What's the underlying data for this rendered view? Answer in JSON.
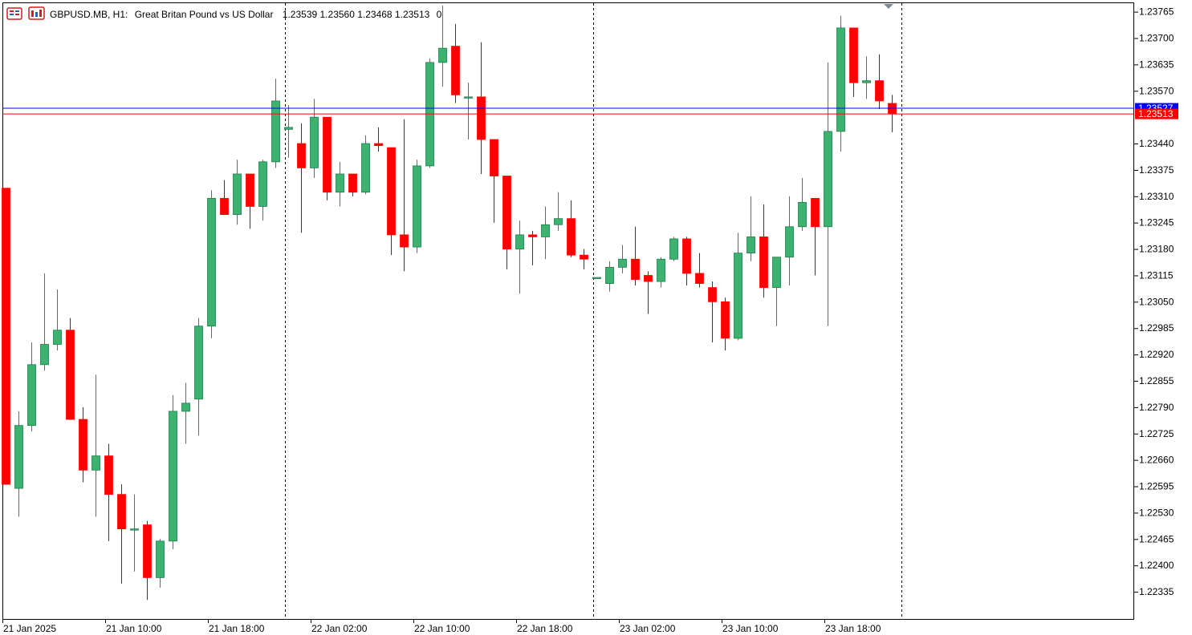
{
  "header": {
    "symbol": "GBPUSD.MB, H1:",
    "description": "Great Britan Pound vs US Dollar",
    "ohlc": "1.23539 1.23560 1.23468 1.23513",
    "volume": "0"
  },
  "colors": {
    "bull": "#3CB371",
    "bull_wick": "#2E8B57",
    "bear": "#FF0000",
    "bear_wick": "#C00000",
    "ask_line": "#0000FF",
    "bid_line": "#FF0000",
    "grid": "#000000"
  },
  "chart_data": {
    "type": "candlestick",
    "timeframe": "H1",
    "y_axis_labels": [
      "1.23765",
      "1.23700",
      "1.23635",
      "1.23570",
      "1.23440",
      "1.23375",
      "1.23310",
      "1.23245",
      "1.23180",
      "1.23115",
      "1.23050",
      "1.22985",
      "1.22920",
      "1.22855",
      "1.22790",
      "1.22725",
      "1.22660",
      "1.22595",
      "1.22530",
      "1.22465",
      "1.22400",
      "1.22335"
    ],
    "ylim": [
      1.22268,
      1.23786
    ],
    "x_axis_labels": [
      "21 Jan 2025",
      "21 Jan 10:00",
      "21 Jan 18:00",
      "22 Jan 02:00",
      "22 Jan 10:00",
      "22 Jan 18:00",
      "23 Jan 02:00",
      "23 Jan 10:00",
      "23 Jan 18:00"
    ],
    "ask_price": "1.23527",
    "bid_price": "1.23513",
    "candles": [
      {
        "o": 1.2333,
        "h": 1.2333,
        "l": 1.226,
        "c": 1.226
      },
      {
        "o": 1.2259,
        "h": 1.2278,
        "l": 1.2252,
        "c": 1.22745
      },
      {
        "o": 1.22745,
        "h": 1.2295,
        "l": 1.2273,
        "c": 1.22895
      },
      {
        "o": 1.22895,
        "h": 1.2312,
        "l": 1.2288,
        "c": 1.22945
      },
      {
        "o": 1.22945,
        "h": 1.2308,
        "l": 1.2293,
        "c": 1.2298
      },
      {
        "o": 1.2298,
        "h": 1.2301,
        "l": 1.2276,
        "c": 1.2276
      },
      {
        "o": 1.2276,
        "h": 1.2279,
        "l": 1.22605,
        "c": 1.22635
      },
      {
        "o": 1.22635,
        "h": 1.2287,
        "l": 1.2252,
        "c": 1.2267
      },
      {
        "o": 1.2267,
        "h": 1.227,
        "l": 1.2246,
        "c": 1.22575
      },
      {
        "o": 1.22575,
        "h": 1.226,
        "l": 1.22355,
        "c": 1.2249
      },
      {
        "o": 1.2249,
        "h": 1.22575,
        "l": 1.22385,
        "c": 1.2249
      },
      {
        "o": 1.225,
        "h": 1.2251,
        "l": 1.22315,
        "c": 1.2237
      },
      {
        "o": 1.2237,
        "h": 1.22465,
        "l": 1.22345,
        "c": 1.2246
      },
      {
        "o": 1.2246,
        "h": 1.2282,
        "l": 1.2244,
        "c": 1.2278
      },
      {
        "o": 1.2278,
        "h": 1.2285,
        "l": 1.227,
        "c": 1.228
      },
      {
        "o": 1.2281,
        "h": 1.2301,
        "l": 1.2272,
        "c": 1.2299
      },
      {
        "o": 1.2299,
        "h": 1.23325,
        "l": 1.2296,
        "c": 1.23305
      },
      {
        "o": 1.23305,
        "h": 1.2335,
        "l": 1.23265,
        "c": 1.23265
      },
      {
        "o": 1.23265,
        "h": 1.234,
        "l": 1.2324,
        "c": 1.23365
      },
      {
        "o": 1.23365,
        "h": 1.23365,
        "l": 1.2323,
        "c": 1.23285
      },
      {
        "o": 1.23285,
        "h": 1.234,
        "l": 1.2325,
        "c": 1.23395
      },
      {
        "o": 1.23395,
        "h": 1.236,
        "l": 1.2338,
        "c": 1.23545
      },
      {
        "o": 1.23475,
        "h": 1.23535,
        "l": 1.23405,
        "c": 1.2348
      },
      {
        "o": 1.2344,
        "h": 1.2349,
        "l": 1.2322,
        "c": 1.2338
      },
      {
        "o": 1.2338,
        "h": 1.2355,
        "l": 1.23355,
        "c": 1.23505
      },
      {
        "o": 1.23505,
        "h": 1.23505,
        "l": 1.233,
        "c": 1.2332
      },
      {
        "o": 1.2332,
        "h": 1.23395,
        "l": 1.23285,
        "c": 1.23365
      },
      {
        "o": 1.23365,
        "h": 1.23365,
        "l": 1.2331,
        "c": 1.2332
      },
      {
        "o": 1.2332,
        "h": 1.2346,
        "l": 1.23315,
        "c": 1.2344
      },
      {
        "o": 1.2344,
        "h": 1.2348,
        "l": 1.2342,
        "c": 1.23435
      },
      {
        "o": 1.2343,
        "h": 1.2343,
        "l": 1.23165,
        "c": 1.23215
      },
      {
        "o": 1.23215,
        "h": 1.235,
        "l": 1.23125,
        "c": 1.23185
      },
      {
        "o": 1.23185,
        "h": 1.234,
        "l": 1.2317,
        "c": 1.23385
      },
      {
        "o": 1.23385,
        "h": 1.2365,
        "l": 1.2338,
        "c": 1.2364
      },
      {
        "o": 1.2364,
        "h": 1.2378,
        "l": 1.2358,
        "c": 1.23675
      },
      {
        "o": 1.2368,
        "h": 1.23735,
        "l": 1.2354,
        "c": 1.2356
      },
      {
        "o": 1.23555,
        "h": 1.2359,
        "l": 1.2345,
        "c": 1.23555
      },
      {
        "o": 1.23555,
        "h": 1.2369,
        "l": 1.23365,
        "c": 1.2345
      },
      {
        "o": 1.2345,
        "h": 1.2345,
        "l": 1.23245,
        "c": 1.2336
      },
      {
        "o": 1.2336,
        "h": 1.2336,
        "l": 1.2313,
        "c": 1.2318
      },
      {
        "o": 1.2318,
        "h": 1.2325,
        "l": 1.2307,
        "c": 1.23215
      },
      {
        "o": 1.23215,
        "h": 1.23225,
        "l": 1.2314,
        "c": 1.2321
      },
      {
        "o": 1.2321,
        "h": 1.23285,
        "l": 1.23155,
        "c": 1.2324
      },
      {
        "o": 1.2324,
        "h": 1.2332,
        "l": 1.23225,
        "c": 1.23255
      },
      {
        "o": 1.23255,
        "h": 1.233,
        "l": 1.2316,
        "c": 1.23165
      },
      {
        "o": 1.23165,
        "h": 1.2318,
        "l": 1.2313,
        "c": 1.23155
      },
      {
        "o": 1.2311,
        "h": 1.2311,
        "l": 1.2311,
        "c": 1.2311
      },
      {
        "o": 1.23095,
        "h": 1.2315,
        "l": 1.23075,
        "c": 1.23135
      },
      {
        "o": 1.23135,
        "h": 1.2319,
        "l": 1.2312,
        "c": 1.23155
      },
      {
        "o": 1.23155,
        "h": 1.23235,
        "l": 1.2309,
        "c": 1.23105
      },
      {
        "o": 1.23115,
        "h": 1.23125,
        "l": 1.2302,
        "c": 1.231
      },
      {
        "o": 1.231,
        "h": 1.2316,
        "l": 1.23085,
        "c": 1.23155
      },
      {
        "o": 1.23155,
        "h": 1.2321,
        "l": 1.2315,
        "c": 1.23205
      },
      {
        "o": 1.23205,
        "h": 1.2321,
        "l": 1.2309,
        "c": 1.2312
      },
      {
        "o": 1.2312,
        "h": 1.2317,
        "l": 1.23085,
        "c": 1.23095
      },
      {
        "o": 1.23085,
        "h": 1.231,
        "l": 1.2295,
        "c": 1.2305
      },
      {
        "o": 1.2305,
        "h": 1.2306,
        "l": 1.2293,
        "c": 1.2296
      },
      {
        "o": 1.2296,
        "h": 1.2322,
        "l": 1.22955,
        "c": 1.2317
      },
      {
        "o": 1.2317,
        "h": 1.2331,
        "l": 1.2315,
        "c": 1.2321
      },
      {
        "o": 1.2321,
        "h": 1.2329,
        "l": 1.2306,
        "c": 1.23085
      },
      {
        "o": 1.23085,
        "h": 1.2316,
        "l": 1.2299,
        "c": 1.2316
      },
      {
        "o": 1.2316,
        "h": 1.2331,
        "l": 1.2309,
        "c": 1.23235
      },
      {
        "o": 1.23235,
        "h": 1.23355,
        "l": 1.23225,
        "c": 1.23295
      },
      {
        "o": 1.23305,
        "h": 1.23305,
        "l": 1.23115,
        "c": 1.23235
      },
      {
        "o": 1.23235,
        "h": 1.2364,
        "l": 1.2299,
        "c": 1.2347
      },
      {
        "o": 1.2347,
        "h": 1.23755,
        "l": 1.2342,
        "c": 1.23725
      },
      {
        "o": 1.23725,
        "h": 1.23725,
        "l": 1.23555,
        "c": 1.2359
      },
      {
        "o": 1.2359,
        "h": 1.23655,
        "l": 1.2355,
        "c": 1.23595
      },
      {
        "o": 1.23595,
        "h": 1.2366,
        "l": 1.23525,
        "c": 1.23545
      },
      {
        "o": 1.23539,
        "h": 1.2356,
        "l": 1.23468,
        "c": 1.23513
      }
    ]
  }
}
